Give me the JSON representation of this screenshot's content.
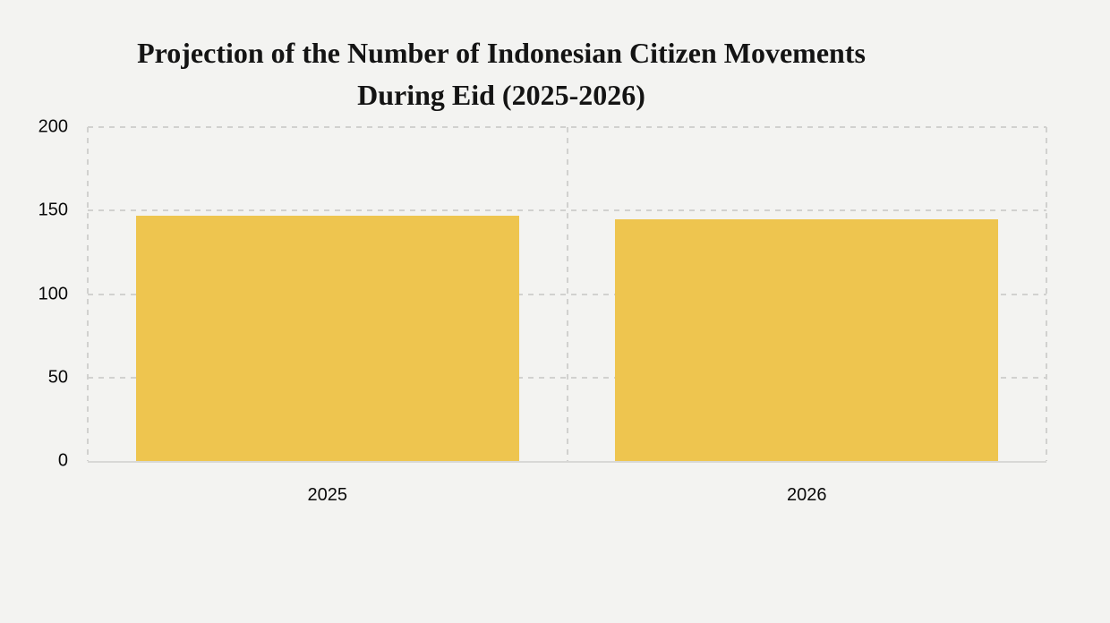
{
  "page": {
    "background_color": "#f3f3f1",
    "text_color": "#0a0a0a",
    "title_color": "#141414"
  },
  "chart_data": {
    "type": "bar",
    "title": "Projection of the Number of Indonesian Citizen Movements During Eid (2025-2026)",
    "title_lines": [
      "Projection of the Number of Indonesian Citizen Movements",
      "During Eid (2025-2026)"
    ],
    "categories": [
      "2025",
      "2026"
    ],
    "values": [
      147,
      145
    ],
    "xlabel": "",
    "ylabel": "",
    "ylim": [
      0,
      200
    ],
    "yticks": [
      0,
      50,
      100,
      150,
      200
    ],
    "bar_color": "#eec54f",
    "gridline_color": "#d1d1cf",
    "axis_line_color": "#d8d8d6",
    "grid": "dashed",
    "legend": "none"
  }
}
